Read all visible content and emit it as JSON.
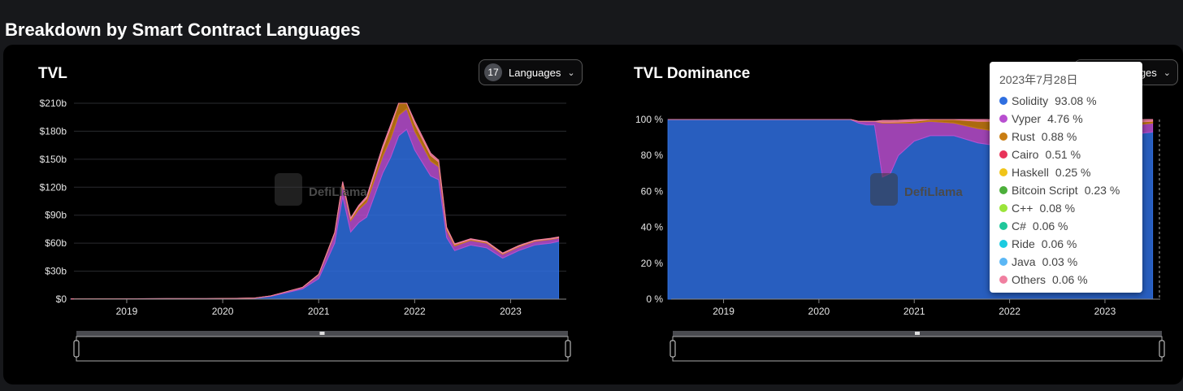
{
  "section_title": "Breakdown by Smart Contract Languages",
  "colors": {
    "Solidity": "#2f6fe0",
    "Vyper": "#b84fd0",
    "Rust": "#c97d12",
    "Cairo": "#e8335a",
    "Haskell": "#f0c419",
    "Bitcoin Script": "#4caf3a",
    "C++": "#9be53a",
    "C#": "#1fc79a",
    "Ride": "#1ccbe0",
    "Java": "#5bb7f5",
    "Others": "#f07fa0"
  },
  "watermark": "DefiLlama",
  "tvl_card": {
    "title": "TVL",
    "languages_count": "17",
    "languages_label": "Languages"
  },
  "dominance_card": {
    "title": "TVL Dominance",
    "languages_label": "Languages"
  },
  "tooltip": {
    "date": "2023年7月28日",
    "items": [
      {
        "name": "Solidity",
        "value": "93.08 %"
      },
      {
        "name": "Vyper",
        "value": "4.76 %"
      },
      {
        "name": "Rust",
        "value": "0.88 %"
      },
      {
        "name": "Cairo",
        "value": "0.51 %"
      },
      {
        "name": "Haskell",
        "value": "0.25 %"
      },
      {
        "name": "Bitcoin Script",
        "value": "0.23 %"
      },
      {
        "name": "C++",
        "value": "0.08 %"
      },
      {
        "name": "C#",
        "value": "0.06 %"
      },
      {
        "name": "Ride",
        "value": "0.06 %"
      },
      {
        "name": "Java",
        "value": "0.03 %"
      },
      {
        "name": "Others",
        "value": "0.06 %"
      }
    ]
  },
  "chart_data": [
    {
      "type": "area",
      "title": "TVL",
      "x": [
        "2018-06",
        "2018-10",
        "2019-02",
        "2019-06",
        "2019-10",
        "2020-02",
        "2020-05",
        "2020-07",
        "2020-09",
        "2020-11",
        "2021-01",
        "2021-03",
        "2021-04",
        "2021-05",
        "2021-06",
        "2021-07",
        "2021-09",
        "2021-10",
        "2021-11",
        "2021-12",
        "2022-01",
        "2022-03",
        "2022-04",
        "2022-05",
        "2022-06",
        "2022-08",
        "2022-10",
        "2022-12",
        "2023-02",
        "2023-04",
        "2023-06",
        "2023-07"
      ],
      "series": [
        {
          "name": "Solidity",
          "values": [
            0.2,
            0.3,
            0.4,
            0.5,
            0.5,
            0.8,
            1,
            3,
            7,
            11,
            22,
            60,
            110,
            72,
            82,
            88,
            135,
            152,
            175,
            182,
            160,
            132,
            128,
            66,
            52,
            58,
            55,
            44,
            52,
            58,
            60,
            62
          ]
        },
        {
          "name": "Vyper",
          "values": [
            0,
            0,
            0,
            0,
            0,
            0,
            0.2,
            0.5,
            1,
            1.5,
            4,
            10,
            13,
            12,
            14,
            16,
            18,
            20,
            22,
            22,
            20,
            16,
            14,
            8,
            5,
            5,
            5,
            4,
            4,
            4,
            4,
            3.5
          ]
        },
        {
          "name": "Rust",
          "values": [
            0,
            0,
            0,
            0,
            0,
            0,
            0,
            0,
            0.1,
            0.2,
            0.5,
            1,
            2,
            2,
            3,
            4,
            8,
            12,
            13,
            12,
            8,
            6,
            5,
            2,
            1.5,
            1,
            1,
            0.8,
            0.7,
            0.6,
            0.6,
            0.6
          ]
        },
        {
          "name": "Others",
          "values": [
            0,
            0,
            0,
            0,
            0,
            0,
            0,
            0,
            0,
            0.1,
            0.2,
            0.5,
            1,
            1,
            1.5,
            2,
            3,
            3,
            3,
            3,
            3,
            2.5,
            2,
            1,
            0.8,
            0.8,
            0.8,
            0.7,
            0.7,
            0.6,
            0.6,
            0.6
          ]
        }
      ],
      "yticks": [
        "$0",
        "$30b",
        "$60b",
        "$90b",
        "$120b",
        "$150b",
        "$180b",
        "$210b"
      ],
      "xticks": [
        "2019",
        "2020",
        "2021",
        "2022",
        "2023"
      ],
      "ylim": [
        0,
        210
      ]
    },
    {
      "type": "area",
      "title": "TVL Dominance",
      "x": [
        "2018-06",
        "2019-01",
        "2019-06",
        "2020-01",
        "2020-05",
        "2020-06",
        "2020-07",
        "2020-08",
        "2020-09",
        "2020-10",
        "2020-11",
        "2021-01",
        "2021-03",
        "2021-06",
        "2021-09",
        "2021-12",
        "2022-03",
        "2022-06",
        "2022-09",
        "2022-12",
        "2023-03",
        "2023-07"
      ],
      "series": [
        {
          "name": "Solidity",
          "values": [
            100,
            100,
            100,
            100,
            100,
            98,
            97,
            97,
            68,
            70,
            80,
            88,
            91,
            91,
            87,
            85,
            83,
            86,
            89,
            90,
            91,
            93
          ]
        },
        {
          "name": "Vyper",
          "values": [
            0,
            0,
            0,
            0,
            0,
            1,
            2,
            2,
            30,
            28,
            18,
            10,
            8,
            7,
            8,
            8,
            8,
            7,
            6,
            5,
            5,
            5
          ]
        },
        {
          "name": "Rust",
          "values": [
            0,
            0,
            0,
            0,
            0,
            0,
            0,
            0,
            0.5,
            0.5,
            0.6,
            1,
            1,
            2,
            4,
            6,
            7,
            5,
            3,
            3,
            2,
            1
          ]
        },
        {
          "name": "Others",
          "values": [
            0,
            0,
            0,
            0,
            0,
            0,
            0,
            0,
            1,
            1,
            1,
            1,
            1,
            1,
            1,
            1,
            2,
            2,
            2,
            2,
            2,
            1
          ]
        }
      ],
      "yticks": [
        "0 %",
        "20 %",
        "40 %",
        "60 %",
        "80 %",
        "100 %"
      ],
      "xticks": [
        "2019",
        "2020",
        "2021",
        "2022",
        "2023"
      ],
      "ylim": [
        0,
        100
      ]
    }
  ]
}
